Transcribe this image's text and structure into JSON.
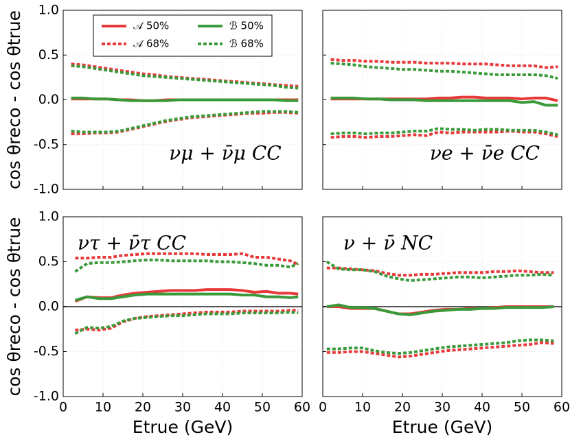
{
  "chart_data": [
    {
      "type": "line",
      "ylabel": "cos θreco - cos θtrue",
      "annotation": "νμ + ν̄μ CC",
      "legend": "upper center",
      "show_xtick_labels": false,
      "show_ytick_labels": true,
      "grid": true,
      "zero_line": false,
      "xlim": [
        0,
        60
      ],
      "ylim": [
        -1.0,
        1.0
      ],
      "xticks": [
        0,
        10,
        20,
        30,
        40,
        50,
        60
      ],
      "yticks": [
        {
          "value": -1,
          "label": "-1.0"
        },
        -0.5,
        {
          "value": 0,
          "label": "0.0"
        },
        0.5,
        {
          "value": 1,
          "label": "1.0"
        }
      ],
      "x": [
        2,
        5,
        8,
        11,
        14,
        17,
        20,
        23,
        26,
        29,
        32,
        35,
        38,
        41,
        44,
        47,
        50,
        53,
        56,
        59
      ],
      "series": [
        {
          "name": "𝒜 50%",
          "color": "#e8393a",
          "dashed": false,
          "values": [
            0.01,
            0.01,
            0.01,
            0.01,
            0.0,
            0.0,
            -0.01,
            -0.01,
            0.0,
            0.0,
            0.0,
            0.0,
            0.0,
            0.0,
            0.0,
            0.0,
            0.0,
            0.0,
            0.0,
            0.0
          ]
        },
        {
          "name": "ℬ 50%",
          "color": "#3a9a3a",
          "dashed": false,
          "values": [
            0.02,
            0.02,
            0.01,
            0.01,
            0.0,
            -0.01,
            -0.01,
            -0.01,
            -0.01,
            0.0,
            0.0,
            0.0,
            0.0,
            0.0,
            0.0,
            0.0,
            0.0,
            0.0,
            -0.01,
            -0.01
          ]
        },
        {
          "name": "𝒜 68%",
          "color": "#e8393a",
          "dashed": true,
          "upper": [
            0.4,
            0.39,
            0.37,
            0.35,
            0.33,
            0.31,
            0.29,
            0.28,
            0.26,
            0.25,
            0.24,
            0.23,
            0.22,
            0.21,
            0.2,
            0.19,
            0.18,
            0.17,
            0.16,
            0.15
          ],
          "lower": [
            -0.38,
            -0.38,
            -0.37,
            -0.37,
            -0.36,
            -0.33,
            -0.3,
            -0.27,
            -0.24,
            -0.22,
            -0.2,
            -0.19,
            -0.18,
            -0.17,
            -0.16,
            -0.15,
            -0.15,
            -0.14,
            -0.14,
            -0.15
          ]
        },
        {
          "name": "ℬ 68%",
          "color": "#3a9a3a",
          "dashed": true,
          "upper": [
            0.38,
            0.37,
            0.35,
            0.33,
            0.31,
            0.29,
            0.27,
            0.26,
            0.25,
            0.24,
            0.23,
            0.22,
            0.21,
            0.2,
            0.19,
            0.18,
            0.17,
            0.16,
            0.14,
            0.13
          ],
          "lower": [
            -0.35,
            -0.36,
            -0.36,
            -0.36,
            -0.35,
            -0.32,
            -0.29,
            -0.26,
            -0.23,
            -0.21,
            -0.19,
            -0.18,
            -0.17,
            -0.16,
            -0.15,
            -0.14,
            -0.13,
            -0.13,
            -0.13,
            -0.14
          ]
        }
      ]
    },
    {
      "type": "line",
      "annotation": "νe + ν̄e CC",
      "show_xtick_labels": false,
      "show_ytick_labels": false,
      "grid": true,
      "zero_line": false,
      "xlim": [
        0,
        60
      ],
      "ylim": [
        -1.0,
        1.0
      ],
      "xticks": [
        0,
        10,
        20,
        30,
        40,
        50,
        60
      ],
      "yticks": [
        {
          "value": -1,
          "label": "-1.0"
        },
        -0.5,
        {
          "value": 0,
          "label": "0.0"
        },
        0.5,
        {
          "value": 1,
          "label": "1.0"
        }
      ],
      "x": [
        2,
        5,
        8,
        11,
        14,
        17,
        20,
        23,
        26,
        29,
        32,
        35,
        38,
        41,
        44,
        47,
        50,
        53,
        56,
        59
      ],
      "series": [
        {
          "name": "𝒜 50%",
          "color": "#e8393a",
          "dashed": false,
          "values": [
            0.01,
            0.01,
            0.01,
            0.01,
            0.01,
            0.01,
            0.01,
            0.01,
            0.01,
            0.02,
            0.02,
            0.03,
            0.03,
            0.02,
            0.02,
            0.02,
            0.01,
            0.02,
            0.02,
            -0.01
          ]
        },
        {
          "name": "ℬ 50%",
          "color": "#3a9a3a",
          "dashed": false,
          "values": [
            0.02,
            0.02,
            0.02,
            0.01,
            0.01,
            0.0,
            0.0,
            0.0,
            -0.01,
            -0.01,
            -0.01,
            -0.01,
            -0.01,
            -0.01,
            -0.01,
            -0.01,
            -0.03,
            -0.02,
            -0.06,
            -0.06
          ]
        },
        {
          "name": "𝒜 68%",
          "color": "#e8393a",
          "dashed": true,
          "upper": [
            0.45,
            0.44,
            0.44,
            0.43,
            0.43,
            0.42,
            0.42,
            0.42,
            0.41,
            0.41,
            0.41,
            0.4,
            0.4,
            0.4,
            0.39,
            0.38,
            0.38,
            0.38,
            0.36,
            0.37
          ],
          "lower": [
            -0.42,
            -0.41,
            -0.41,
            -0.42,
            -0.41,
            -0.41,
            -0.4,
            -0.39,
            -0.4,
            -0.36,
            -0.37,
            -0.36,
            -0.36,
            -0.36,
            -0.36,
            -0.35,
            -0.36,
            -0.36,
            -0.38,
            -0.41
          ]
        },
        {
          "name": "ℬ 68%",
          "color": "#3a9a3a",
          "dashed": true,
          "upper": [
            0.41,
            0.4,
            0.39,
            0.37,
            0.36,
            0.35,
            0.34,
            0.34,
            0.33,
            0.32,
            0.32,
            0.31,
            0.3,
            0.29,
            0.28,
            0.28,
            0.28,
            0.28,
            0.27,
            0.24
          ],
          "lower": [
            -0.38,
            -0.37,
            -0.37,
            -0.38,
            -0.37,
            -0.37,
            -0.36,
            -0.35,
            -0.35,
            -0.32,
            -0.33,
            -0.33,
            -0.34,
            -0.33,
            -0.33,
            -0.34,
            -0.34,
            -0.34,
            -0.36,
            -0.39
          ]
        }
      ]
    },
    {
      "type": "line",
      "ylabel": "cos θreco - cos θtrue",
      "xlabel": "Etrue (GeV)",
      "annotation": "ντ + ν̄τ CC",
      "show_xtick_labels": true,
      "show_ytick_labels": true,
      "grid": true,
      "zero_line": true,
      "xlim": [
        0,
        60
      ],
      "ylim": [
        -1.0,
        1.0
      ],
      "xticks": [
        0,
        10,
        20,
        30,
        40,
        50,
        60
      ],
      "yticks": [
        {
          "value": -1,
          "label": "-1.0"
        },
        -0.5,
        {
          "value": 0,
          "label": "0.0"
        },
        0.5,
        {
          "value": 1,
          "label": "1.0"
        }
      ],
      "x": [
        3,
        6,
        9,
        12,
        15,
        18,
        21,
        24,
        27,
        30,
        33,
        36,
        39,
        42,
        45,
        48,
        51,
        54,
        57,
        59
      ],
      "series": [
        {
          "name": "𝒜 50%",
          "color": "#e8393a",
          "dashed": false,
          "values": [
            0.06,
            0.11,
            0.1,
            0.1,
            0.13,
            0.15,
            0.16,
            0.17,
            0.18,
            0.18,
            0.18,
            0.19,
            0.19,
            0.19,
            0.18,
            0.16,
            0.17,
            0.15,
            0.15,
            0.14
          ]
        },
        {
          "name": "ℬ 50%",
          "color": "#3a9a3a",
          "dashed": false,
          "values": [
            0.07,
            0.11,
            0.09,
            0.09,
            0.11,
            0.13,
            0.14,
            0.14,
            0.14,
            0.14,
            0.14,
            0.14,
            0.14,
            0.14,
            0.13,
            0.13,
            0.11,
            0.11,
            0.1,
            0.11
          ]
        },
        {
          "name": "𝒜 68%",
          "color": "#e8393a",
          "dashed": true,
          "upper": [
            0.54,
            0.54,
            0.55,
            0.55,
            0.57,
            0.58,
            0.59,
            0.59,
            0.59,
            0.59,
            0.59,
            0.58,
            0.58,
            0.58,
            0.59,
            0.55,
            0.55,
            0.53,
            0.51,
            0.47
          ],
          "lower": [
            -0.26,
            -0.25,
            -0.26,
            -0.24,
            -0.17,
            -0.13,
            -0.11,
            -0.1,
            -0.09,
            -0.08,
            -0.07,
            -0.06,
            -0.06,
            -0.06,
            -0.05,
            -0.05,
            -0.05,
            -0.05,
            -0.04,
            -0.04
          ]
        },
        {
          "name": "ℬ 68%",
          "color": "#3a9a3a",
          "dashed": true,
          "upper": [
            0.39,
            0.48,
            0.49,
            0.49,
            0.5,
            0.51,
            0.52,
            0.52,
            0.51,
            0.51,
            0.51,
            0.51,
            0.5,
            0.5,
            0.49,
            0.48,
            0.46,
            0.46,
            0.44,
            0.48
          ],
          "lower": [
            -0.3,
            -0.23,
            -0.24,
            -0.22,
            -0.16,
            -0.13,
            -0.12,
            -0.11,
            -0.1,
            -0.1,
            -0.09,
            -0.08,
            -0.08,
            -0.08,
            -0.07,
            -0.07,
            -0.07,
            -0.07,
            -0.06,
            -0.07
          ]
        }
      ]
    },
    {
      "type": "line",
      "xlabel": "Etrue (GeV)",
      "annotation": "ν + ν̄ NC",
      "show_xtick_labels": true,
      "show_ytick_labels": false,
      "grid": true,
      "zero_line": true,
      "xlim": [
        0,
        60
      ],
      "ylim": [
        -1.0,
        1.0
      ],
      "xticks": [
        0,
        10,
        20,
        30,
        40,
        50,
        60
      ],
      "yticks": [
        {
          "value": -1,
          "label": "-1.0"
        },
        -0.5,
        {
          "value": 0,
          "label": "0.0"
        },
        0.5,
        {
          "value": 1,
          "label": "1.0"
        }
      ],
      "x": [
        1,
        4,
        7,
        10,
        13,
        16,
        19,
        22,
        25,
        28,
        31,
        34,
        37,
        40,
        43,
        46,
        49,
        52,
        55,
        58
      ],
      "series": [
        {
          "name": "𝒜 50%",
          "color": "#e8393a",
          "dashed": false,
          "values": [
            0.0,
            0.0,
            -0.02,
            -0.02,
            -0.02,
            -0.05,
            -0.08,
            -0.08,
            -0.06,
            -0.04,
            -0.03,
            -0.03,
            -0.02,
            -0.02,
            -0.01,
            0.0,
            0.0,
            0.0,
            0.0,
            0.0
          ]
        },
        {
          "name": "ℬ 50%",
          "color": "#3a9a3a",
          "dashed": false,
          "values": [
            0.0,
            0.02,
            -0.01,
            -0.01,
            -0.02,
            -0.05,
            -0.08,
            -0.09,
            -0.07,
            -0.05,
            -0.04,
            -0.03,
            -0.03,
            -0.02,
            -0.02,
            -0.01,
            -0.01,
            -0.01,
            -0.01,
            0.0
          ]
        },
        {
          "name": "𝒜 68%",
          "color": "#e8393a",
          "dashed": true,
          "upper": [
            0.43,
            0.43,
            0.42,
            0.41,
            0.4,
            0.37,
            0.35,
            0.35,
            0.36,
            0.36,
            0.37,
            0.38,
            0.38,
            0.38,
            0.39,
            0.39,
            0.4,
            0.39,
            0.38,
            0.38
          ],
          "lower": [
            -0.51,
            -0.51,
            -0.5,
            -0.5,
            -0.52,
            -0.54,
            -0.56,
            -0.55,
            -0.53,
            -0.51,
            -0.49,
            -0.48,
            -0.47,
            -0.46,
            -0.45,
            -0.44,
            -0.43,
            -0.42,
            -0.4,
            -0.41
          ]
        },
        {
          "name": "ℬ 68%",
          "color": "#3a9a3a",
          "dashed": true,
          "upper": [
            0.5,
            0.42,
            0.41,
            0.41,
            0.39,
            0.34,
            0.31,
            0.29,
            0.3,
            0.31,
            0.32,
            0.33,
            0.33,
            0.32,
            0.33,
            0.34,
            0.35,
            0.35,
            0.36,
            0.35
          ],
          "lower": [
            -0.47,
            -0.47,
            -0.46,
            -0.46,
            -0.49,
            -0.51,
            -0.52,
            -0.51,
            -0.49,
            -0.47,
            -0.45,
            -0.44,
            -0.43,
            -0.42,
            -0.41,
            -0.4,
            -0.38,
            -0.37,
            -0.37,
            -0.38
          ]
        }
      ]
    }
  ]
}
